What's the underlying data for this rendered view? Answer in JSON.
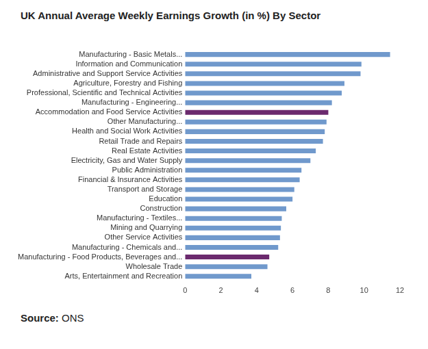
{
  "chart_data": {
    "type": "bar",
    "orientation": "horizontal",
    "title": "UK Annual Average Weekly Earnings Growth (in %) By Sector",
    "source": "Source: ONS",
    "categories": [
      "Manufacturing - Basic Metals...",
      "Information and Communication",
      "Administrative and Support Service Activities",
      "Agriculture, Forestry and Fishing",
      "Professional, Scientific and Technical Activities",
      "Manufacturing - Engineering...",
      "Accommodation and Food Service Activities",
      "Other Manufacturing...",
      "Health and Social Work Activities",
      "Retail Trade and Repairs",
      "Real Estate Activities",
      "Electricity, Gas and Water Supply",
      "Public Administration",
      "Financial & Insurance Activities",
      "Transport and Storage",
      "Education",
      "Construction",
      "Manufacturing - Textiles...",
      "Mining and Quarrying",
      "Other Service Activities",
      "Manufacturing - Chemicals and...",
      "Manufacturing - Food Products, Beverages and...",
      "Wholesale Trade",
      "Arts, Entertainment and Recreation"
    ],
    "values": [
      11.45,
      9.85,
      9.8,
      8.9,
      8.75,
      8.2,
      8.0,
      7.9,
      7.8,
      7.7,
      7.3,
      7.0,
      6.5,
      6.4,
      6.1,
      6.0,
      5.65,
      5.4,
      5.35,
      5.3,
      5.2,
      4.7,
      4.6,
      3.7
    ],
    "colors": [
      "#7099cc",
      "#7099cc",
      "#7099cc",
      "#7099cc",
      "#7099cc",
      "#7099cc",
      "#6b2a6e",
      "#7099cc",
      "#7099cc",
      "#7099cc",
      "#7099cc",
      "#7099cc",
      "#7099cc",
      "#7099cc",
      "#7099cc",
      "#7099cc",
      "#7099cc",
      "#7099cc",
      "#7099cc",
      "#7099cc",
      "#7099cc",
      "#6b2a6e",
      "#7099cc",
      "#7099cc"
    ],
    "xlim": [
      0,
      12
    ],
    "xticks": [
      0,
      2,
      4,
      6,
      8,
      10,
      12
    ],
    "grid": false
  }
}
